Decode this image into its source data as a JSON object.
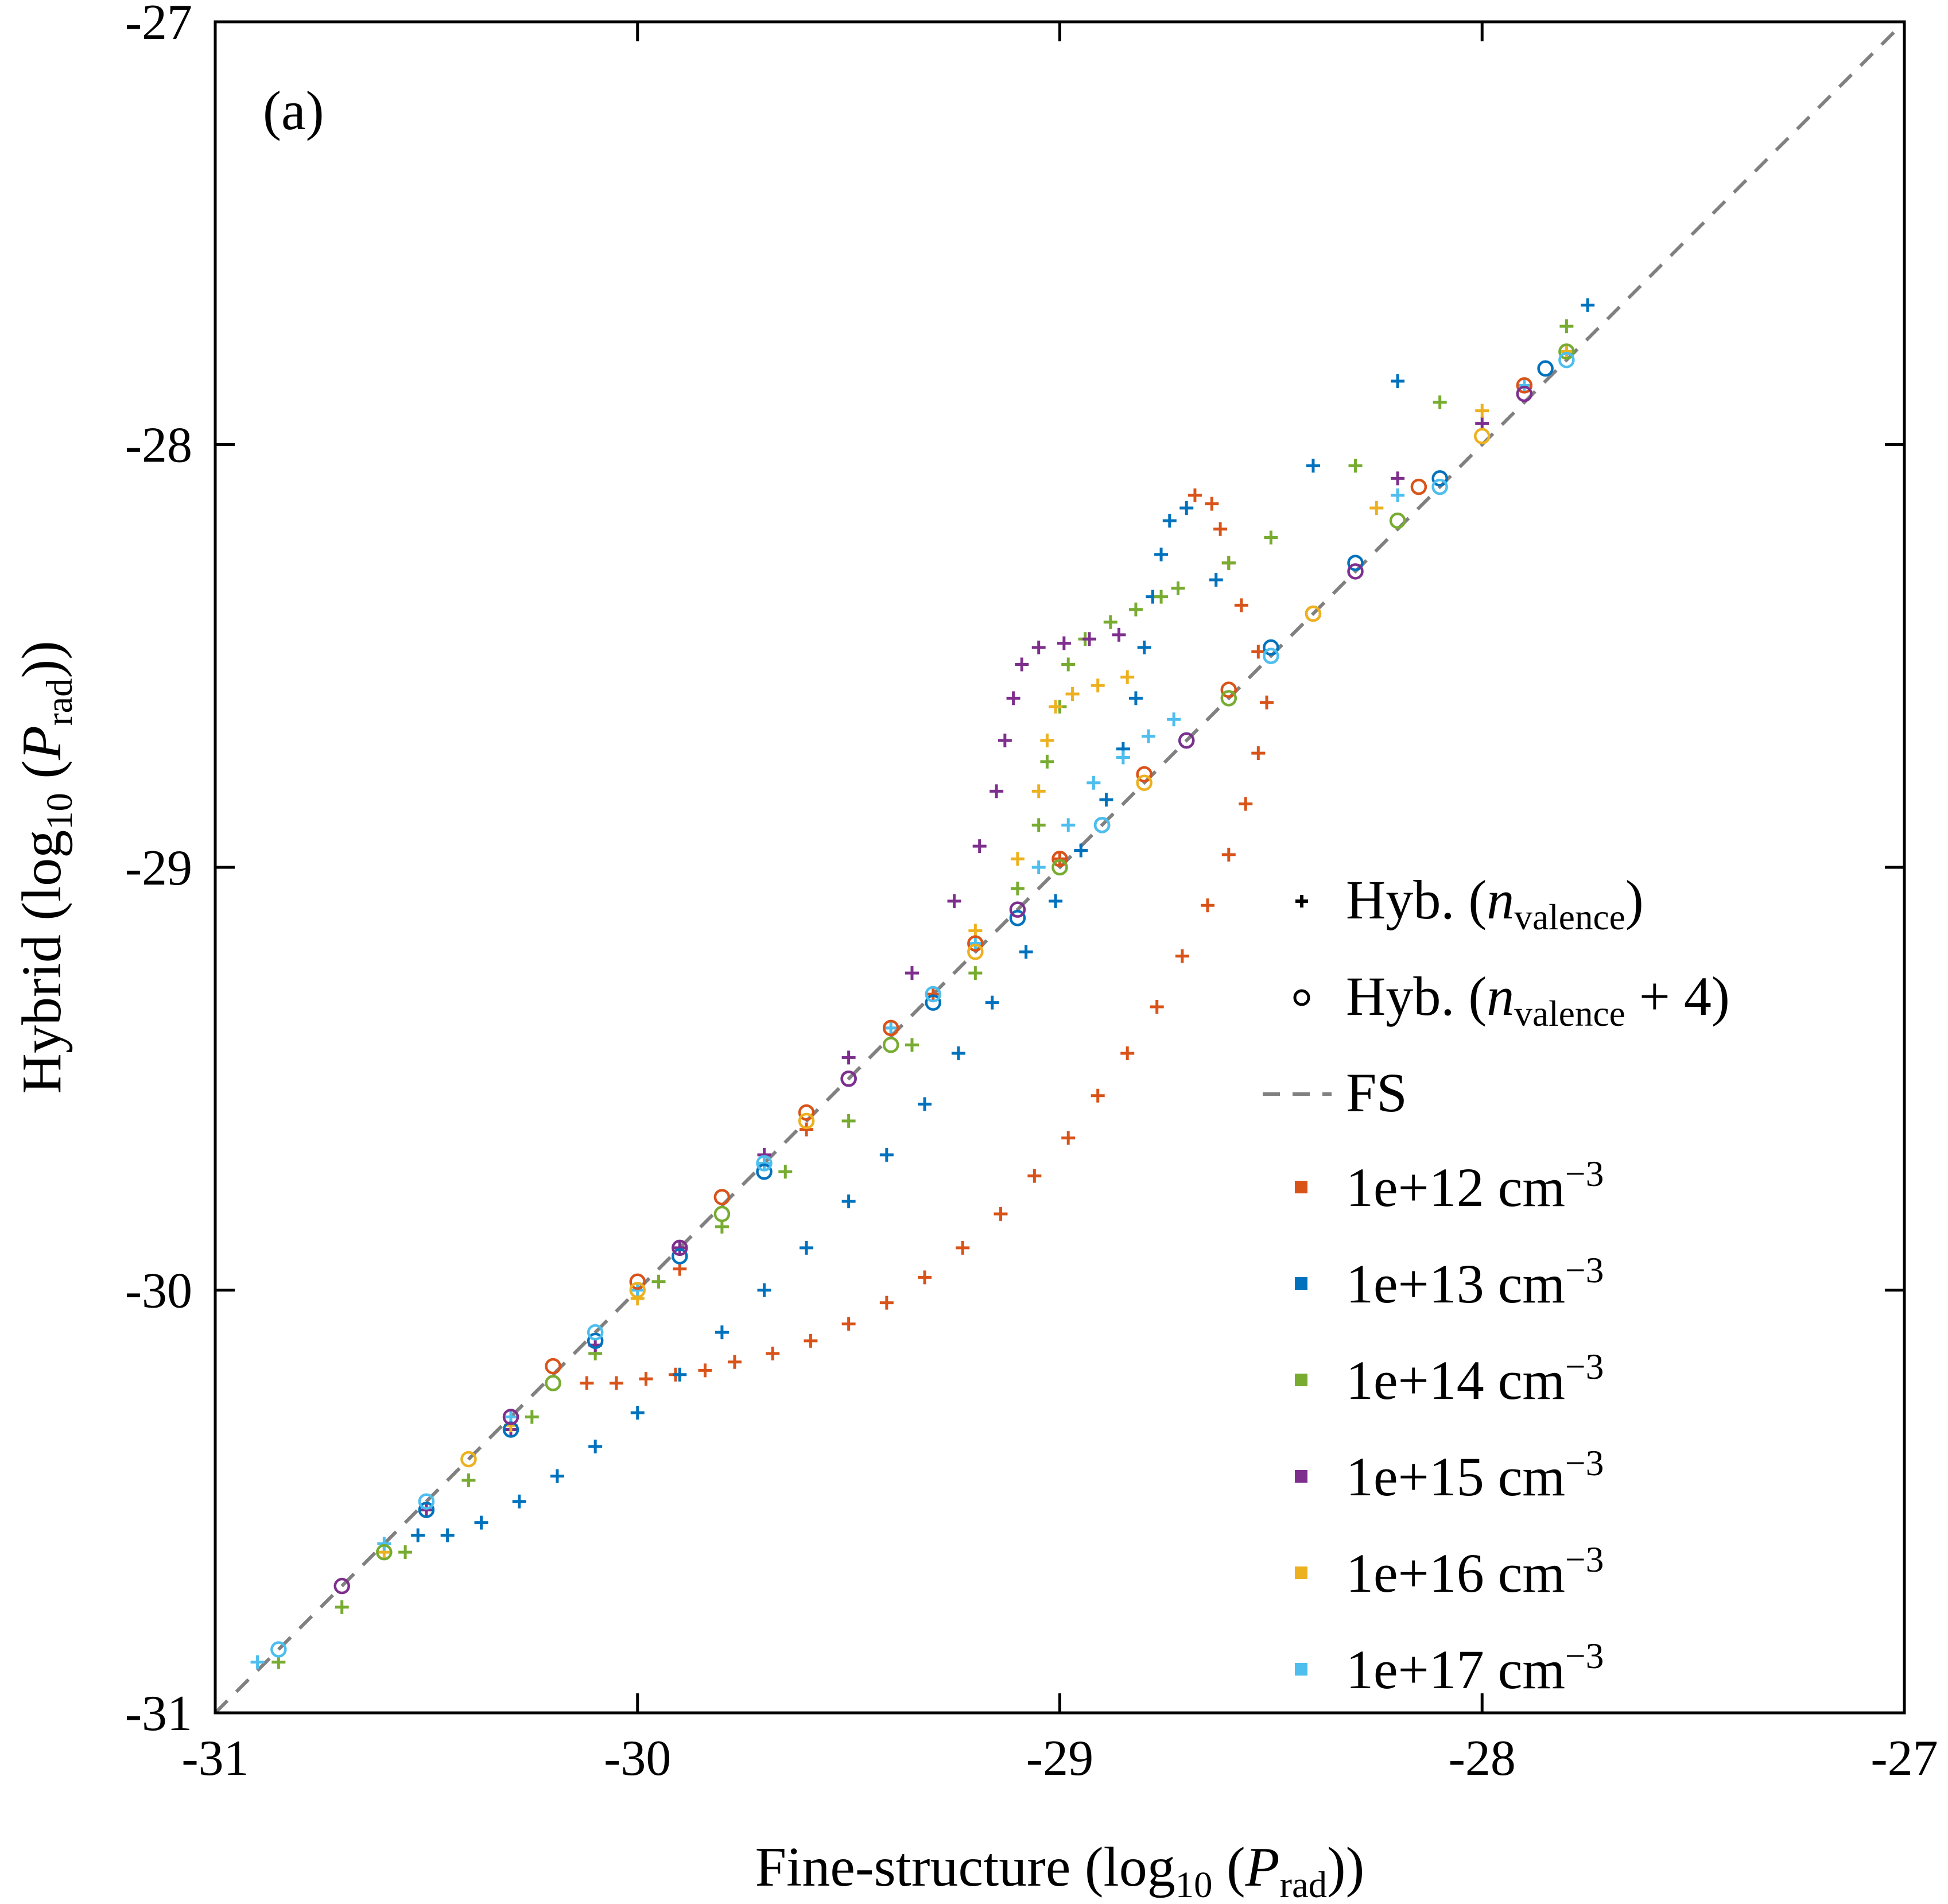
{
  "chart_data": {
    "type": "scatter",
    "panel_label": "(a)",
    "xlabel": {
      "main": "Fine-structure (log",
      "sub": "10",
      "mid": " (",
      "italic": "P",
      "sub2": "rad",
      "tail": "))"
    },
    "ylabel": {
      "main": "Hybrid (log",
      "sub": "10",
      "mid": " (",
      "italic": "P",
      "sub2": "rad",
      "tail": "))"
    },
    "xlim": [
      -31,
      -27
    ],
    "ylim": [
      -31,
      -27
    ],
    "xticks": [
      -31,
      -30,
      -29,
      -28,
      -27
    ],
    "yticks": [
      -31,
      -30,
      -29,
      -28,
      -27
    ],
    "grid": false,
    "legend_placement": "lower-right",
    "legend": {
      "marker_entries": [
        {
          "marker": "plus",
          "label": "Hyb. (",
          "italic": "n",
          "sub": "valence",
          "tail": ")"
        },
        {
          "marker": "circle",
          "label": "Hyb. (",
          "italic": "n",
          "sub": "valence",
          "tail": " + 4)"
        }
      ],
      "line_entry": {
        "label": "FS",
        "color": "#808080"
      },
      "density_entries": [
        {
          "label": "1e+12 cm",
          "sup": "−3",
          "color": "#D95319"
        },
        {
          "label": "1e+13 cm",
          "sup": "−3",
          "color": "#0072BD"
        },
        {
          "label": "1e+14 cm",
          "sup": "−3",
          "color": "#77AC30"
        },
        {
          "label": "1e+15 cm",
          "sup": "−3",
          "color": "#7E2F8E"
        },
        {
          "label": "1e+16 cm",
          "sup": "−3",
          "color": "#EDB120"
        },
        {
          "label": "1e+17 cm",
          "sup": "−3",
          "color": "#4DBEEE"
        }
      ]
    },
    "reference_line": {
      "name": "FS",
      "x": [
        -31,
        -27
      ],
      "y": [
        -31,
        -27
      ],
      "color": "#808080",
      "style": "dashed"
    },
    "series": [
      {
        "density": "1e+12 cm",
        "marker": "plus",
        "color": "#D95319",
        "points": [
          [
            -30.12,
            -30.22
          ],
          [
            -30.05,
            -30.22
          ],
          [
            -29.98,
            -30.21
          ],
          [
            -29.91,
            -30.2
          ],
          [
            -29.84,
            -30.19
          ],
          [
            -29.77,
            -30.17
          ],
          [
            -29.68,
            -30.15
          ],
          [
            -29.59,
            -30.12
          ],
          [
            -29.5,
            -30.08
          ],
          [
            -29.41,
            -30.03
          ],
          [
            -29.32,
            -29.97
          ],
          [
            -29.23,
            -29.9
          ],
          [
            -29.14,
            -29.82
          ],
          [
            -29.06,
            -29.73
          ],
          [
            -28.98,
            -29.64
          ],
          [
            -28.91,
            -29.54
          ],
          [
            -28.84,
            -29.44
          ],
          [
            -28.77,
            -29.33
          ],
          [
            -28.71,
            -29.21
          ],
          [
            -28.65,
            -29.09
          ],
          [
            -28.6,
            -28.97
          ],
          [
            -28.56,
            -28.85
          ],
          [
            -28.53,
            -28.73
          ],
          [
            -28.51,
            -28.61
          ],
          [
            -28.53,
            -28.49
          ],
          [
            -28.57,
            -28.38
          ],
          [
            -28.6,
            -28.28
          ],
          [
            -28.62,
            -28.2
          ],
          [
            -28.64,
            -28.14
          ],
          [
            -28.68,
            -28.12
          ],
          [
            -29.9,
            -29.95
          ],
          [
            -29.6,
            -29.62
          ],
          [
            -29.3,
            -29.3
          ],
          [
            -29.0,
            -28.98
          ]
        ]
      },
      {
        "density": "1e+13 cm",
        "marker": "plus",
        "color": "#0072BD",
        "points": [
          [
            -30.52,
            -30.58
          ],
          [
            -30.45,
            -30.58
          ],
          [
            -30.37,
            -30.55
          ],
          [
            -30.28,
            -30.5
          ],
          [
            -30.19,
            -30.44
          ],
          [
            -30.1,
            -30.37
          ],
          [
            -30.0,
            -30.29
          ],
          [
            -29.9,
            -30.2
          ],
          [
            -29.8,
            -30.1
          ],
          [
            -29.7,
            -30.0
          ],
          [
            -29.6,
            -29.9
          ],
          [
            -29.5,
            -29.79
          ],
          [
            -29.41,
            -29.68
          ],
          [
            -29.32,
            -29.56
          ],
          [
            -29.24,
            -29.44
          ],
          [
            -29.16,
            -29.32
          ],
          [
            -29.08,
            -29.2
          ],
          [
            -29.01,
            -29.08
          ],
          [
            -28.95,
            -28.96
          ],
          [
            -28.89,
            -28.84
          ],
          [
            -28.85,
            -28.72
          ],
          [
            -28.82,
            -28.6
          ],
          [
            -28.8,
            -28.48
          ],
          [
            -28.78,
            -28.36
          ],
          [
            -28.76,
            -28.26
          ],
          [
            -28.74,
            -28.18
          ],
          [
            -28.7,
            -28.15
          ],
          [
            -28.63,
            -28.32
          ],
          [
            -28.4,
            -28.05
          ],
          [
            -28.2,
            -27.85
          ],
          [
            -27.75,
            -27.67
          ]
        ]
      },
      {
        "density": "1e+14 cm",
        "marker": "plus",
        "color": "#77AC30",
        "points": [
          [
            -30.85,
            -30.88
          ],
          [
            -30.7,
            -30.75
          ],
          [
            -30.55,
            -30.62
          ],
          [
            -30.4,
            -30.45
          ],
          [
            -30.25,
            -30.3
          ],
          [
            -30.1,
            -30.15
          ],
          [
            -29.95,
            -29.98
          ],
          [
            -29.8,
            -29.85
          ],
          [
            -29.65,
            -29.72
          ],
          [
            -29.5,
            -29.6
          ],
          [
            -29.35,
            -29.42
          ],
          [
            -29.2,
            -29.25
          ],
          [
            -29.1,
            -29.05
          ],
          [
            -29.05,
            -28.9
          ],
          [
            -29.03,
            -28.75
          ],
          [
            -29.0,
            -28.62
          ],
          [
            -28.98,
            -28.52
          ],
          [
            -28.94,
            -28.46
          ],
          [
            -28.88,
            -28.42
          ],
          [
            -28.82,
            -28.39
          ],
          [
            -28.76,
            -28.36
          ],
          [
            -28.72,
            -28.34
          ],
          [
            -28.6,
            -28.28
          ],
          [
            -28.5,
            -28.22
          ],
          [
            -28.3,
            -28.05
          ],
          [
            -28.1,
            -27.9
          ],
          [
            -27.8,
            -27.72
          ]
        ]
      },
      {
        "density": "1e+15 cm",
        "marker": "plus",
        "color": "#7E2F8E",
        "points": [
          [
            -30.5,
            -30.52
          ],
          [
            -30.3,
            -30.33
          ],
          [
            -30.1,
            -30.13
          ],
          [
            -29.9,
            -29.9
          ],
          [
            -29.7,
            -29.68
          ],
          [
            -29.5,
            -29.45
          ],
          [
            -29.35,
            -29.25
          ],
          [
            -29.25,
            -29.08
          ],
          [
            -29.19,
            -28.95
          ],
          [
            -29.15,
            -28.82
          ],
          [
            -29.13,
            -28.7
          ],
          [
            -29.11,
            -28.6
          ],
          [
            -29.09,
            -28.52
          ],
          [
            -29.05,
            -28.48
          ],
          [
            -28.99,
            -28.47
          ],
          [
            -28.93,
            -28.46
          ],
          [
            -28.86,
            -28.45
          ],
          [
            -28.2,
            -28.08
          ],
          [
            -28.0,
            -27.95
          ],
          [
            -27.8,
            -27.78
          ]
        ]
      },
      {
        "density": "1e+16 cm",
        "marker": "plus",
        "color": "#EDB120",
        "points": [
          [
            -30.6,
            -30.62
          ],
          [
            -30.3,
            -30.32
          ],
          [
            -30.0,
            -30.02
          ],
          [
            -29.7,
            -29.7
          ],
          [
            -29.4,
            -29.38
          ],
          [
            -29.2,
            -29.15
          ],
          [
            -29.1,
            -28.98
          ],
          [
            -29.05,
            -28.82
          ],
          [
            -29.03,
            -28.7
          ],
          [
            -29.01,
            -28.62
          ],
          [
            -28.97,
            -28.59
          ],
          [
            -28.91,
            -28.57
          ],
          [
            -28.84,
            -28.55
          ],
          [
            -28.25,
            -28.15
          ],
          [
            -28.0,
            -27.92
          ],
          [
            -27.8,
            -27.78
          ]
        ]
      },
      {
        "density": "1e+17 cm",
        "marker": "plus",
        "color": "#4DBEEE",
        "points": [
          [
            -30.9,
            -30.88
          ],
          [
            -30.6,
            -30.6
          ],
          [
            -30.3,
            -30.3
          ],
          [
            -30.0,
            -30.0
          ],
          [
            -29.7,
            -29.7
          ],
          [
            -29.4,
            -29.38
          ],
          [
            -29.2,
            -29.18
          ],
          [
            -29.05,
            -29.0
          ],
          [
            -28.98,
            -28.9
          ],
          [
            -28.92,
            -28.8
          ],
          [
            -28.85,
            -28.74
          ],
          [
            -28.79,
            -28.69
          ],
          [
            -28.73,
            -28.65
          ],
          [
            -28.2,
            -28.12
          ],
          [
            -27.9,
            -27.86
          ]
        ]
      },
      {
        "density": "1e+12 cm",
        "marker": "circle",
        "color": "#D95319",
        "points": [
          [
            -30.2,
            -30.18
          ],
          [
            -30.0,
            -29.98
          ],
          [
            -29.8,
            -29.78
          ],
          [
            -29.6,
            -29.58
          ],
          [
            -29.4,
            -29.38
          ],
          [
            -29.2,
            -29.18
          ],
          [
            -29.0,
            -28.98
          ],
          [
            -28.8,
            -28.78
          ],
          [
            -28.6,
            -28.58
          ],
          [
            -28.4,
            -28.4
          ],
          [
            -28.15,
            -28.1
          ],
          [
            -27.9,
            -27.86
          ]
        ]
      },
      {
        "density": "1e+13 cm",
        "marker": "circle",
        "color": "#0072BD",
        "points": [
          [
            -30.5,
            -30.52
          ],
          [
            -30.3,
            -30.33
          ],
          [
            -30.1,
            -30.12
          ],
          [
            -29.9,
            -29.92
          ],
          [
            -29.7,
            -29.72
          ],
          [
            -29.5,
            -29.5
          ],
          [
            -29.3,
            -29.32
          ],
          [
            -29.1,
            -29.12
          ],
          [
            -28.9,
            -28.9
          ],
          [
            -28.7,
            -28.7
          ],
          [
            -28.5,
            -28.48
          ],
          [
            -28.3,
            -28.28
          ],
          [
            -28.1,
            -28.08
          ],
          [
            -27.85,
            -27.82
          ]
        ]
      },
      {
        "density": "1e+14 cm",
        "marker": "circle",
        "color": "#77AC30",
        "points": [
          [
            -30.6,
            -30.62
          ],
          [
            -30.2,
            -30.22
          ],
          [
            -29.8,
            -29.82
          ],
          [
            -29.4,
            -29.42
          ],
          [
            -29.0,
            -29.0
          ],
          [
            -28.6,
            -28.6
          ],
          [
            -28.2,
            -28.18
          ],
          [
            -27.8,
            -27.78
          ]
        ]
      },
      {
        "density": "1e+15 cm",
        "marker": "circle",
        "color": "#7E2F8E",
        "points": [
          [
            -30.7,
            -30.7
          ],
          [
            -30.3,
            -30.3
          ],
          [
            -29.9,
            -29.9
          ],
          [
            -29.5,
            -29.5
          ],
          [
            -29.1,
            -29.1
          ],
          [
            -28.7,
            -28.7
          ],
          [
            -28.3,
            -28.3
          ],
          [
            -27.9,
            -27.88
          ]
        ]
      },
      {
        "density": "1e+16 cm",
        "marker": "circle",
        "color": "#EDB120",
        "points": [
          [
            -30.4,
            -30.4
          ],
          [
            -30.0,
            -30.0
          ],
          [
            -29.6,
            -29.6
          ],
          [
            -29.2,
            -29.2
          ],
          [
            -28.8,
            -28.8
          ],
          [
            -28.4,
            -28.4
          ],
          [
            -28.0,
            -27.98
          ]
        ]
      },
      {
        "density": "1e+17 cm",
        "marker": "circle",
        "color": "#4DBEEE",
        "points": [
          [
            -30.85,
            -30.85
          ],
          [
            -30.5,
            -30.5
          ],
          [
            -30.1,
            -30.1
          ],
          [
            -29.7,
            -29.7
          ],
          [
            -29.3,
            -29.3
          ],
          [
            -28.9,
            -28.9
          ],
          [
            -28.5,
            -28.5
          ],
          [
            -28.1,
            -28.1
          ],
          [
            -27.8,
            -27.8
          ]
        ]
      }
    ]
  }
}
